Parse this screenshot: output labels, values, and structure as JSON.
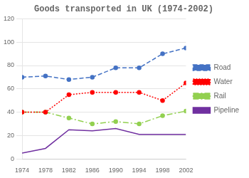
{
  "chart_data": {
    "type": "line",
    "title": "Goods transported in UK (1974-2002)",
    "x": [
      1974,
      1978,
      1982,
      1986,
      1990,
      1994,
      1998,
      2002
    ],
    "series": [
      {
        "name": "Road",
        "color": "#4472c4",
        "values": [
          70,
          71,
          68,
          70,
          78,
          78,
          90,
          95
        ],
        "marker": "circle",
        "line_style": "dashed"
      },
      {
        "name": "Water",
        "color": "#ff0000",
        "values": [
          40,
          40,
          55,
          57,
          57,
          57,
          50,
          65
        ],
        "marker": "circle",
        "line_style": "dotted"
      },
      {
        "name": "Rail",
        "color": "#92d050",
        "values": [
          40,
          40,
          35,
          30,
          32,
          30,
          37,
          41
        ],
        "marker": "circle",
        "line_style": "dashdot"
      },
      {
        "name": "Pipeline",
        "color": "#7030a0",
        "values": [
          5,
          9,
          25,
          24,
          26,
          21,
          21,
          21
        ],
        "marker": "none",
        "line_style": "solid"
      }
    ],
    "xlim": [
      1974,
      2002
    ],
    "xticks": [
      1974,
      1978,
      1982,
      1986,
      1990,
      1994,
      1998,
      2002
    ],
    "ylim": [
      0,
      120
    ],
    "yticks": [
      0,
      20,
      40,
      60,
      80,
      100,
      120
    ],
    "grid": true,
    "legend": "right"
  }
}
